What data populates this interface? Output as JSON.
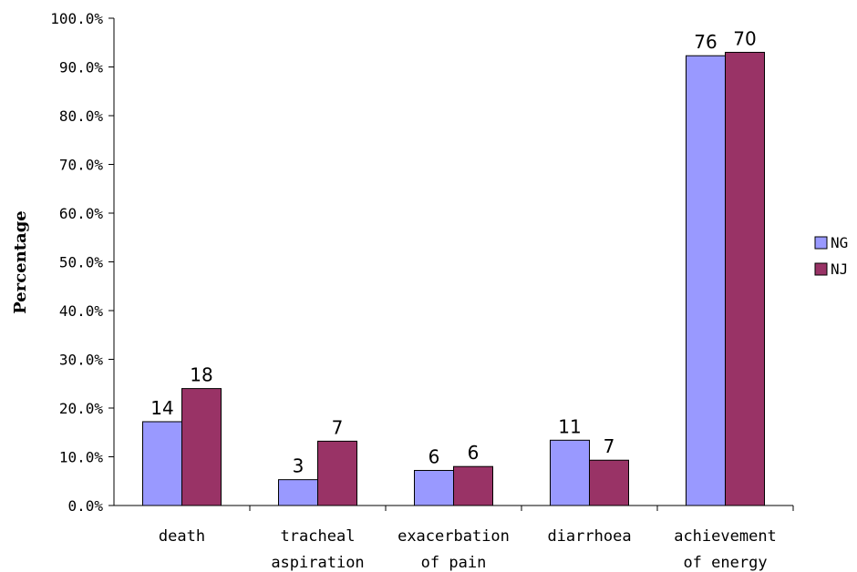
{
  "chart_data": {
    "type": "bar",
    "ylabel": "Percentage",
    "ylim": [
      0,
      100
    ],
    "yticks": [
      "0.0%",
      "10.0%",
      "20.0%",
      "30.0%",
      "40.0%",
      "50.0%",
      "60.0%",
      "70.0%",
      "80.0%",
      "90.0%",
      "100.0%"
    ],
    "categories": [
      [
        "death"
      ],
      [
        "tracheal",
        "aspiration"
      ],
      [
        "exacerbation",
        "of pain"
      ],
      [
        "diarrhoea"
      ],
      [
        "achievement",
        "of energy"
      ]
    ],
    "series": [
      {
        "name": "NG",
        "color": "#9999ff",
        "values": [
          17.2,
          5.3,
          7.2,
          13.4,
          92.3
        ],
        "labels": [
          "14",
          "3",
          "6",
          "11",
          "76"
        ]
      },
      {
        "name": "NJ",
        "color": "#993366",
        "values": [
          24.0,
          13.2,
          8.0,
          9.3,
          93.0
        ],
        "labels": [
          "18",
          "7",
          "6",
          "7",
          "70"
        ]
      }
    ],
    "legend": "right",
    "grid": false
  }
}
